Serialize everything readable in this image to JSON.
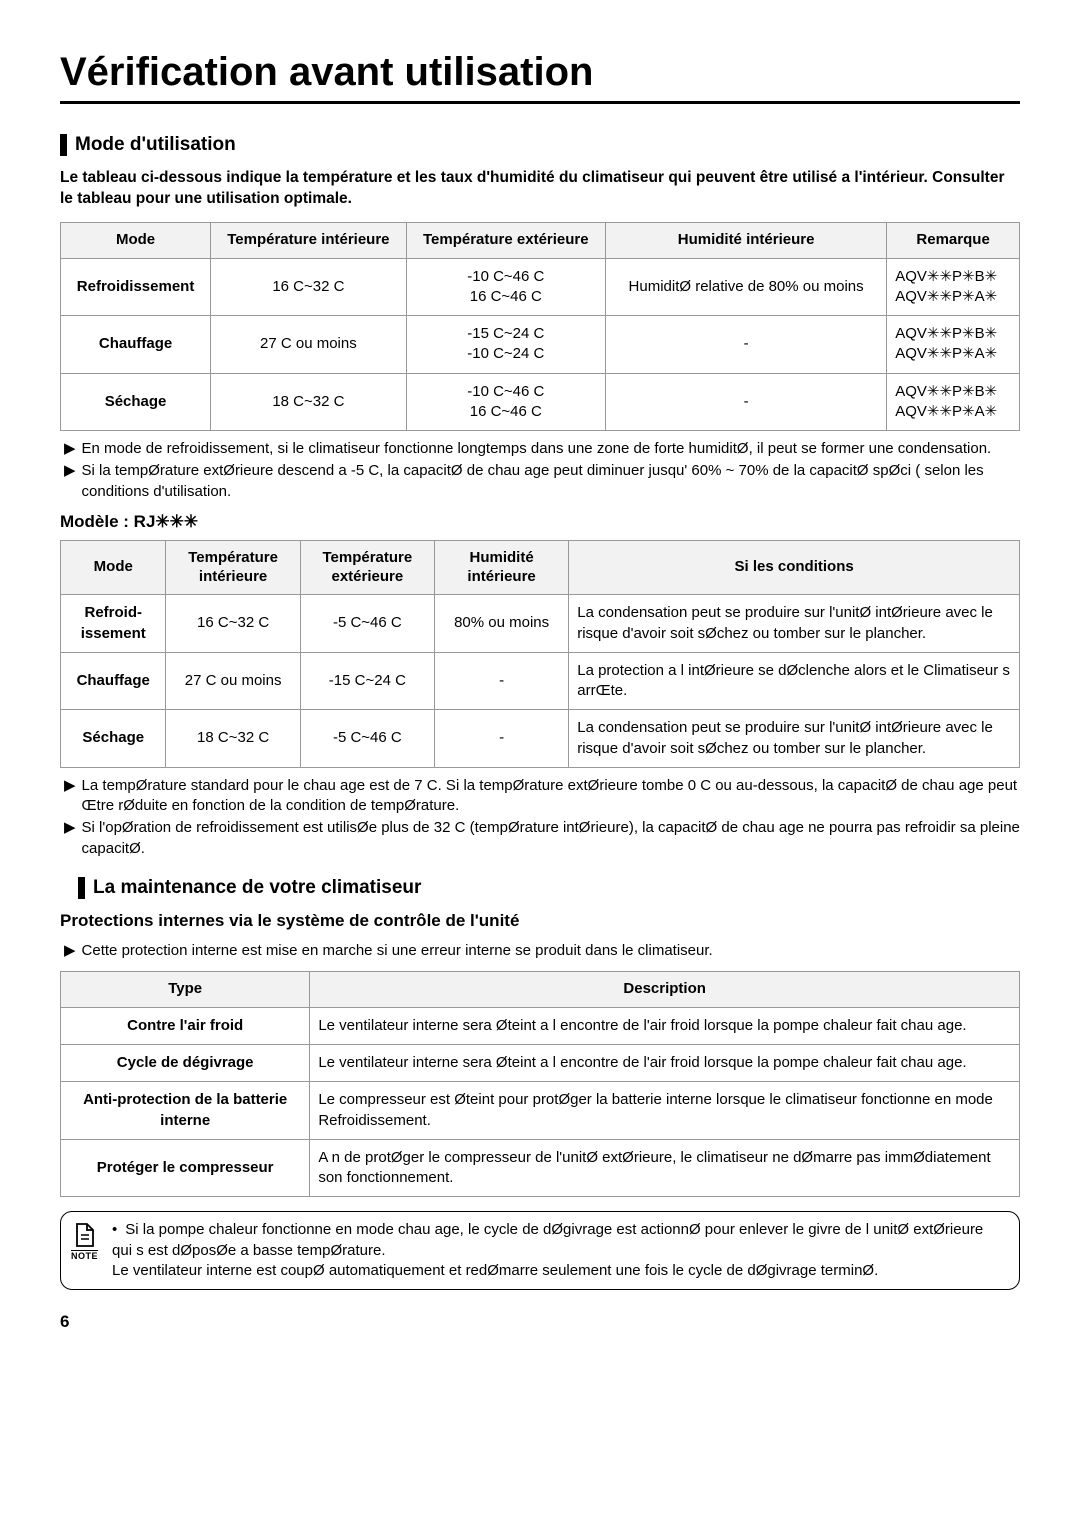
{
  "title": "Vérification avant utilisation",
  "section1": {
    "heading": "Mode d'utilisation",
    "intro": "Le tableau ci-dessous indique la température et les taux d'humidité du climatiseur qui peuvent être utilisé a l'intérieur. Consulter le tableau pour une utilisation optimale.",
    "table": {
      "head": [
        "Mode",
        "Température intérieure",
        "Température extérieure",
        "Humidité intérieure",
        "Remarque"
      ],
      "rows": [
        {
          "mode": "Refroidissement",
          "ti": "16 C~32 C",
          "te": "-10 C~46 C\n16 C~46 C",
          "hi": "HumiditØ relative de 80% ou moins",
          "rem": "AQV✳✳P✳B✳\nAQV✳✳P✳A✳"
        },
        {
          "mode": "Chauffage",
          "ti": "27 C ou moins",
          "te": "-15 C~24 C\n-10 C~24 C",
          "hi": "-",
          "rem": "AQV✳✳P✳B✳\nAQV✳✳P✳A✳"
        },
        {
          "mode": "Séchage",
          "ti": "18 C~32 C",
          "te": "-10 C~46 C\n16 C~46 C",
          "hi": "-",
          "rem": "AQV✳✳P✳B✳\nAQV✳✳P✳A✳"
        }
      ]
    },
    "bullets": [
      "En mode de refroidissement, si le climatiseur fonctionne longtemps dans une zone de forte humiditØ, il peut se former une condensation.",
      "Si la tempØrature extØrieure descend a -5  C, la capacitØ de chau age peut diminuer jusqu'  60% ~ 70% de la capacitØ spØci ( selon les conditions d'utilisation."
    ]
  },
  "model_line": "Modèle : RJ✳✳✳",
  "table2": {
    "head": [
      "Mode",
      "Température intérieure",
      "Température extérieure",
      "Humidité intérieure",
      "Si les conditions"
    ],
    "rows": [
      {
        "mode": "Refroid-issement",
        "ti": "16 C~32 C",
        "te": "-5 C~46 C",
        "hi": "80% ou moins",
        "cond": "La condensation peut se produire sur l'unitØ intØrieure avec le risque d'avoir soit sØchez ou tomber sur le plancher."
      },
      {
        "mode": "Chauffage",
        "ti": "27 C ou moins",
        "te": "-15 C~24 C",
        "hi": "-",
        "cond": "La protection a l intØrieure se dØclenche alors et le Climatiseur s arrŒte."
      },
      {
        "mode": "Séchage",
        "ti": "18 C~32 C",
        "te": "-5 C~46 C",
        "hi": "-",
        "cond": "La condensation peut se produire sur l'unitØ intØrieure avec le risque d'avoir soit sØchez ou tomber sur le plancher."
      }
    ]
  },
  "bullets2": [
    "La tempØrature standard pour le chau age est de 7  C. Si la tempØrature extØrieure tombe   0  C ou au-dessous, la capacitØ de chau age peut Œtre rØduite en fonction de la condition de tempØrature.",
    "Si l'opØration de refroidissement est utilisØe  plus de 32  C (tempØrature intØrieure), la capacitØ de chau age ne pourra pas refroidir   sa pleine capacitØ."
  ],
  "section3": {
    "heading": "La maintenance de votre climatiseur",
    "subheading": "Protections internes via le système de contrôle de l'unité",
    "bullet": "Cette protection interne est mise en marche si une erreur interne se produit dans le climatiseur.",
    "table": {
      "head": [
        "Type",
        "Description"
      ],
      "rows": [
        {
          "t": "Contre l'air froid",
          "d": "Le ventilateur interne sera Øteint a l encontre de l'air froid lorsque la pompe   chaleur fait chau age."
        },
        {
          "t": "Cycle de dégivrage",
          "d": "Le ventilateur interne sera Øteint a l encontre de l'air froid lorsque la pompe   chaleur fait chau age."
        },
        {
          "t": "Anti-protection de la batterie interne",
          "d": "Le compresseur est Øteint pour protØger la batterie interne lorsque le climatiseur fonctionne en mode Refroidissement."
        },
        {
          "t": "Protéger le compresseur",
          "d": "A n de protØger le compresseur de l'unitØ extØrieure, le climatiseur ne dØmarre pas immØdiatement son fonctionnement."
        }
      ]
    }
  },
  "note": {
    "label": "NOTE",
    "text": "Si la pompe   chaleur fonctionne en mode chau age, le cycle de dØgivrage est actionnØ pour enlever le givre de l unitØ extØrieure qui s est dØposØe a basse tempØrature.\nLe ventilateur interne est coupØ automatiquement et redØmarre seulement une fois le cycle de dØgivrage terminØ."
  },
  "page": "6"
}
